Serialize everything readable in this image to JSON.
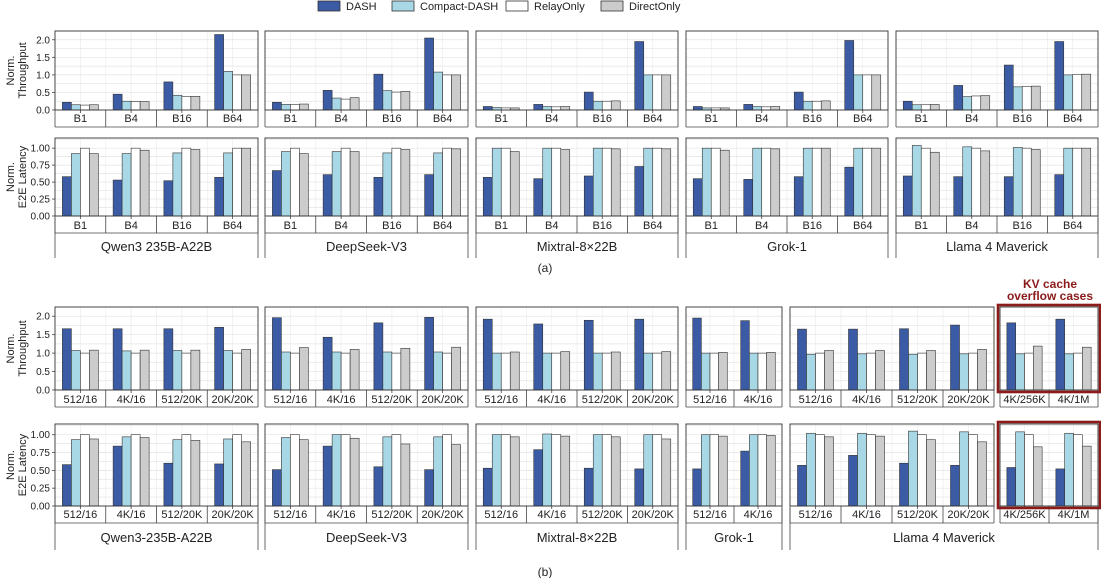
{
  "legend": [
    "DASH",
    "Compact-DASH",
    "RelayOnly",
    "DirectOnly"
  ],
  "colors": {
    "DASH": "#3b5ba5",
    "Compact-DASH": "#a8d8e6",
    "RelayOnly": "#ffffff",
    "DirectOnly": "#cccccc",
    "highlight": "#8b1a1a"
  },
  "captions": {
    "a": "(a)",
    "b": "(b)"
  },
  "annotation": {
    "line1": "KV cache",
    "line2": "overflow cases"
  },
  "ylabels": {
    "throughput": [
      "Norm.",
      "Throughput"
    ],
    "latency": [
      "Norm.",
      "E2E Latency"
    ]
  },
  "axis": {
    "throughput_a": {
      "ylim": [
        0,
        2.25
      ],
      "ticks": [
        "0.0",
        "0.5",
        "1.0",
        "1.5",
        "2.0"
      ]
    },
    "throughput_b": {
      "ylim": [
        0,
        2.25
      ],
      "ticks": [
        "0.0",
        "0.5",
        "1.0",
        "1.5",
        "2.0"
      ]
    },
    "latency": {
      "ylim": [
        0,
        1.15
      ],
      "ticks": [
        "0.00",
        "0.25",
        "0.50",
        "0.75",
        "1.00"
      ]
    }
  },
  "chart_data": [
    {
      "type": "bar",
      "panel": "a",
      "models": [
        {
          "name": "Qwen3 235B-A22B",
          "categories": [
            "B1",
            "B4",
            "B16",
            "B64"
          ],
          "throughput": [
            [
              0.22,
              0.45,
              0.8,
              2.15
            ],
            [
              0.15,
              0.25,
              0.42,
              1.1
            ],
            [
              0.14,
              0.24,
              0.38,
              1.0
            ],
            [
              0.15,
              0.24,
              0.39,
              1.0
            ]
          ],
          "latency": [
            [
              0.58,
              0.53,
              0.52,
              0.57
            ],
            [
              0.92,
              0.92,
              0.93,
              0.93
            ],
            [
              1.0,
              1.0,
              1.0,
              1.0
            ],
            [
              0.92,
              0.97,
              0.98,
              1.0
            ]
          ]
        },
        {
          "name": "DeepSeek-V3",
          "categories": [
            "B1",
            "B4",
            "B16",
            "B64"
          ],
          "throughput": [
            [
              0.22,
              0.56,
              1.02,
              2.05
            ],
            [
              0.16,
              0.34,
              0.55,
              1.08
            ],
            [
              0.16,
              0.31,
              0.51,
              1.0
            ],
            [
              0.17,
              0.35,
              0.53,
              1.0
            ]
          ],
          "latency": [
            [
              0.67,
              0.61,
              0.57,
              0.61
            ],
            [
              0.95,
              0.95,
              0.93,
              0.93
            ],
            [
              1.0,
              1.0,
              1.0,
              1.0
            ],
            [
              0.92,
              0.95,
              0.98,
              0.99
            ]
          ]
        },
        {
          "name": "Mixtral-8×22B",
          "categories": [
            "B1",
            "B4",
            "B16",
            "B64"
          ],
          "throughput": [
            [
              0.1,
              0.16,
              0.51,
              1.95
            ],
            [
              0.07,
              0.1,
              0.25,
              1.0
            ],
            [
              0.06,
              0.09,
              0.25,
              1.0
            ],
            [
              0.06,
              0.1,
              0.26,
              1.0
            ]
          ],
          "latency": [
            [
              0.57,
              0.55,
              0.59,
              0.73
            ],
            [
              1.0,
              1.0,
              1.0,
              1.0
            ],
            [
              1.0,
              1.0,
              1.0,
              1.0
            ],
            [
              0.95,
              0.98,
              0.99,
              0.99
            ]
          ]
        },
        {
          "name": "Grok-1",
          "categories": [
            "B1",
            "B4",
            "B16",
            "B64"
          ],
          "throughput": [
            [
              0.1,
              0.16,
              0.51,
              1.98
            ],
            [
              0.06,
              0.1,
              0.25,
              1.0
            ],
            [
              0.06,
              0.09,
              0.25,
              1.0
            ],
            [
              0.06,
              0.1,
              0.26,
              1.0
            ]
          ],
          "latency": [
            [
              0.55,
              0.54,
              0.58,
              0.72
            ],
            [
              1.0,
              1.0,
              1.0,
              1.0
            ],
            [
              1.0,
              1.0,
              1.0,
              1.0
            ],
            [
              0.97,
              0.99,
              1.0,
              1.0
            ]
          ]
        },
        {
          "name": "Llama 4 Maverick",
          "categories": [
            "B1",
            "B4",
            "B16",
            "B64"
          ],
          "throughput": [
            [
              0.25,
              0.7,
              1.28,
              1.95
            ],
            [
              0.15,
              0.38,
              0.66,
              1.0
            ],
            [
              0.15,
              0.4,
              0.67,
              1.01
            ],
            [
              0.16,
              0.41,
              0.68,
              1.02
            ]
          ],
          "latency": [
            [
              0.59,
              0.58,
              0.58,
              0.61
            ],
            [
              1.04,
              1.02,
              1.01,
              1.0
            ],
            [
              1.0,
              1.0,
              1.0,
              1.0
            ],
            [
              0.94,
              0.96,
              0.98,
              1.0
            ]
          ]
        }
      ]
    },
    {
      "type": "bar",
      "panel": "b",
      "models": [
        {
          "name": "Qwen3-235B-A22B",
          "categories": [
            "512/16",
            "4K/16",
            "512/20K",
            "20K/20K"
          ],
          "throughput": [
            [
              1.66,
              1.66,
              1.66,
              1.7
            ],
            [
              1.07,
              1.06,
              1.07,
              1.07
            ],
            [
              1.0,
              1.0,
              1.0,
              1.0
            ],
            [
              1.08,
              1.08,
              1.08,
              1.1
            ]
          ],
          "latency": [
            [
              0.58,
              0.84,
              0.6,
              0.59
            ],
            [
              0.93,
              0.97,
              0.93,
              0.94
            ],
            [
              1.0,
              1.0,
              1.0,
              1.0
            ],
            [
              0.94,
              0.96,
              0.92,
              0.9
            ]
          ]
        },
        {
          "name": "DeepSeek-V3",
          "categories": [
            "512/16",
            "4K/16",
            "512/20K",
            "20K/20K"
          ],
          "throughput": [
            [
              1.96,
              1.43,
              1.82,
              1.97
            ],
            [
              1.03,
              1.03,
              1.03,
              1.03
            ],
            [
              1.0,
              1.0,
              1.0,
              1.0
            ],
            [
              1.15,
              1.1,
              1.13,
              1.16
            ]
          ],
          "latency": [
            [
              0.51,
              0.84,
              0.55,
              0.51
            ],
            [
              0.96,
              1.0,
              0.97,
              0.97
            ],
            [
              1.0,
              1.0,
              1.0,
              1.0
            ],
            [
              0.93,
              0.95,
              0.87,
              0.86
            ]
          ]
        },
        {
          "name": "Mixtral-8×22B",
          "categories": [
            "512/16",
            "4K/16",
            "512/20K",
            "20K/20K"
          ],
          "throughput": [
            [
              1.92,
              1.79,
              1.89,
              1.92
            ],
            [
              1.0,
              1.0,
              1.0,
              1.0
            ],
            [
              1.0,
              1.0,
              1.0,
              1.0
            ],
            [
              1.03,
              1.04,
              1.03,
              1.04
            ]
          ],
          "latency": [
            [
              0.53,
              0.79,
              0.53,
              0.52
            ],
            [
              1.0,
              1.01,
              1.0,
              1.0
            ],
            [
              1.0,
              1.0,
              1.0,
              1.0
            ],
            [
              0.97,
              0.98,
              0.97,
              0.94
            ]
          ]
        },
        {
          "name": "Grok-1",
          "categories": [
            "512/16",
            "4K/16"
          ],
          "throughput": [
            [
              1.95,
              1.88
            ],
            [
              1.0,
              1.0
            ],
            [
              1.0,
              1.0
            ],
            [
              1.02,
              1.02
            ]
          ],
          "latency": [
            [
              0.52,
              0.77
            ],
            [
              1.0,
              1.0
            ],
            [
              1.0,
              1.0
            ],
            [
              0.98,
              0.99
            ]
          ]
        },
        {
          "name": "Llama 4 Maverick",
          "categories": [
            "512/16",
            "4K/16",
            "512/20K",
            "20K/20K",
            "4K/256K",
            "4K/1M"
          ],
          "highlighted": [
            "4K/256K",
            "4K/1M"
          ],
          "throughput": [
            [
              1.65,
              1.65,
              1.66,
              1.76,
              1.82,
              1.92
            ],
            [
              0.97,
              0.98,
              0.97,
              0.98,
              0.98,
              0.98
            ],
            [
              1.0,
              1.0,
              1.0,
              1.0,
              1.0,
              1.0
            ],
            [
              1.07,
              1.07,
              1.07,
              1.1,
              1.19,
              1.16
            ]
          ],
          "latency": [
            [
              0.57,
              0.71,
              0.6,
              0.57,
              0.54,
              0.52
            ],
            [
              1.02,
              1.02,
              1.05,
              1.04,
              1.04,
              1.02
            ],
            [
              1.0,
              1.0,
              1.0,
              1.0,
              1.0,
              1.0
            ],
            [
              0.97,
              0.98,
              0.93,
              0.9,
              0.83,
              0.84
            ]
          ]
        }
      ]
    }
  ]
}
